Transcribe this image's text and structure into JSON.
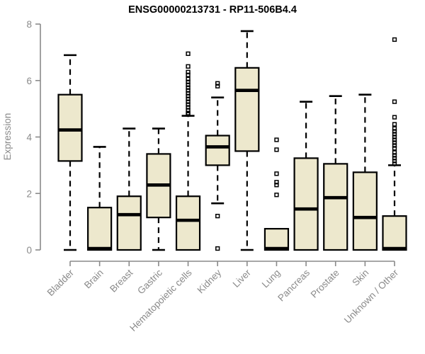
{
  "chart_data": {
    "type": "boxplot",
    "title": "ENSG00000213731 - RP11-506B4.4",
    "ylabel": "Expression",
    "xlabel": "",
    "ylim": [
      0,
      8
    ],
    "yticks": [
      0,
      2,
      4,
      6,
      8
    ],
    "grid": false,
    "legend": false,
    "colors": {
      "box_fill": "#EDE8CD",
      "box_stroke": "#000000",
      "median": "#000000",
      "whisker": "#000000",
      "axis_line": "#8a8a8a",
      "axis_text": "#8a8a8a",
      "title_text": "#000000",
      "background": "#ffffff"
    },
    "categories": [
      "Bladder",
      "Brain",
      "Breast",
      "Gastric",
      "Hematopoietic cells",
      "Kidney",
      "Liver",
      "Lung",
      "Pancreas",
      "Prostate",
      "Skin",
      "Unknown / Other"
    ],
    "series": [
      {
        "category": "Bladder",
        "min": 0,
        "q1": 3.15,
        "median": 4.25,
        "q3": 5.5,
        "max": 6.9,
        "outliers": []
      },
      {
        "category": "Brain",
        "min": 0,
        "q1": 0,
        "median": 0.05,
        "q3": 1.5,
        "max": 3.65,
        "outliers": []
      },
      {
        "category": "Breast",
        "min": 0,
        "q1": 0,
        "median": 1.25,
        "q3": 1.9,
        "max": 4.3,
        "outliers": []
      },
      {
        "category": "Gastric",
        "min": 0,
        "q1": 1.15,
        "median": 2.3,
        "q3": 3.4,
        "max": 4.3,
        "outliers": []
      },
      {
        "category": "Hematopoietic cells",
        "min": 0,
        "q1": 0,
        "median": 1.05,
        "q3": 1.9,
        "max": 4.75,
        "outliers": [
          4.8,
          4.85,
          4.95,
          5.05,
          5.15,
          5.25,
          5.35,
          5.45,
          5.55,
          5.65,
          5.75,
          5.85,
          5.95,
          6.05,
          6.2,
          6.3,
          6.5,
          6.95
        ]
      },
      {
        "category": "Kidney",
        "min": 1.65,
        "q1": 3.0,
        "median": 3.65,
        "q3": 4.05,
        "max": 5.4,
        "outliers": [
          5.9,
          5.8,
          1.2,
          0.05
        ]
      },
      {
        "category": "Liver",
        "min": 0,
        "q1": 3.5,
        "median": 5.65,
        "q3": 6.45,
        "max": 7.75,
        "outliers": []
      },
      {
        "category": "Lung",
        "min": 0,
        "q1": 0,
        "median": 0.05,
        "q3": 0.75,
        "max": 0.75,
        "outliers": [
          1.95,
          2.3,
          2.4,
          2.7,
          3.55,
          3.9
        ]
      },
      {
        "category": "Pancreas",
        "min": 0,
        "q1": 0,
        "median": 1.45,
        "q3": 3.25,
        "max": 5.25,
        "outliers": []
      },
      {
        "category": "Prostate",
        "min": 0,
        "q1": 0,
        "median": 1.85,
        "q3": 3.05,
        "max": 5.45,
        "outliers": []
      },
      {
        "category": "Skin",
        "min": 0,
        "q1": 0,
        "median": 1.15,
        "q3": 2.75,
        "max": 5.5,
        "outliers": []
      },
      {
        "category": "Unknown / Other",
        "min": 0,
        "q1": 0,
        "median": 0.05,
        "q3": 1.2,
        "max": 3.0,
        "outliers": [
          3.05,
          3.15,
          3.25,
          3.35,
          3.45,
          3.6,
          3.7,
          3.8,
          3.9,
          4.0,
          4.1,
          4.2,
          4.3,
          4.45,
          4.7,
          5.25,
          7.45
        ]
      }
    ]
  }
}
